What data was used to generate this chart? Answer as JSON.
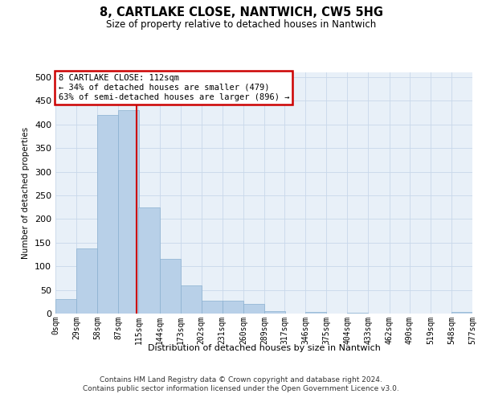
{
  "title": "8, CARTLAKE CLOSE, NANTWICH, CW5 5HG",
  "subtitle": "Size of property relative to detached houses in Nantwich",
  "xlabel": "Distribution of detached houses by size in Nantwich",
  "ylabel": "Number of detached properties",
  "bin_edges": [
    0,
    29,
    58,
    87,
    115,
    144,
    173,
    202,
    231,
    260,
    289,
    317,
    346,
    375,
    404,
    433,
    462,
    490,
    519,
    548,
    577
  ],
  "bin_counts": [
    30,
    138,
    420,
    430,
    225,
    115,
    60,
    28,
    28,
    20,
    5,
    0,
    3,
    0,
    2,
    0,
    0,
    0,
    0,
    3
  ],
  "bar_color": "#b8d0e8",
  "bar_edge_color": "#8ab0d0",
  "grid_color": "#c8d8ea",
  "bg_color": "#e8f0f8",
  "property_size": 112,
  "vline_color": "#cc0000",
  "annotation_text": "8 CARTLAKE CLOSE: 112sqm\n← 34% of detached houses are smaller (479)\n63% of semi-detached houses are larger (896) →",
  "annotation_box_edgecolor": "#cc0000",
  "footer_line1": "Contains HM Land Registry data © Crown copyright and database right 2024.",
  "footer_line2": "Contains public sector information licensed under the Open Government Licence v3.0.",
  "ylim": [
    0,
    510
  ],
  "yticks": [
    0,
    50,
    100,
    150,
    200,
    250,
    300,
    350,
    400,
    450,
    500
  ],
  "tick_labels": [
    "0sqm",
    "29sqm",
    "58sqm",
    "87sqm",
    "115sqm",
    "144sqm",
    "173sqm",
    "202sqm",
    "231sqm",
    "260sqm",
    "289sqm",
    "317sqm",
    "346sqm",
    "375sqm",
    "404sqm",
    "433sqm",
    "462sqm",
    "490sqm",
    "519sqm",
    "548sqm",
    "577sqm"
  ]
}
